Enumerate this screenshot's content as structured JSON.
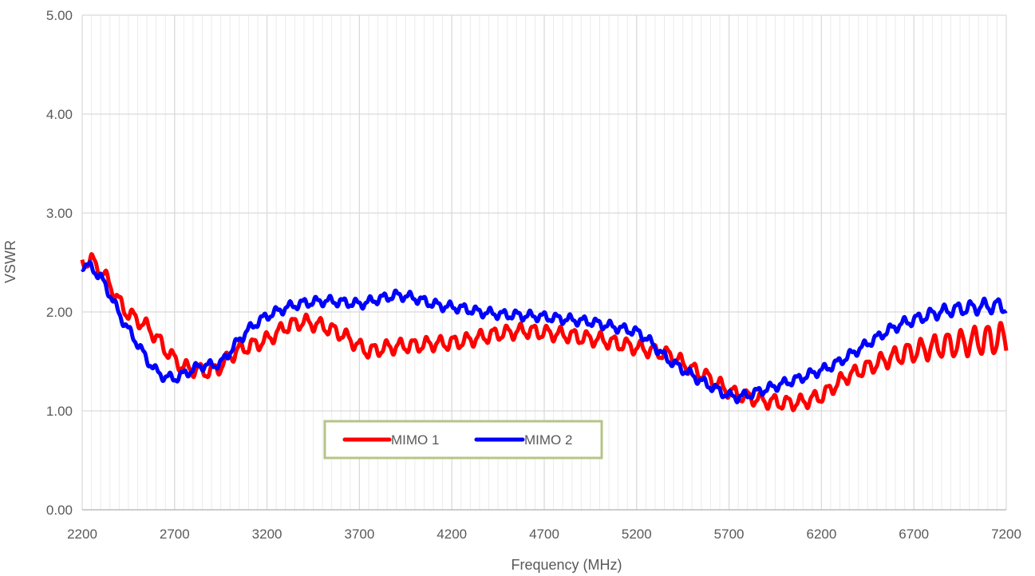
{
  "chart_data": {
    "type": "line",
    "title": "",
    "xlabel": "Frequency (MHz)",
    "ylabel": "VSWR",
    "xlim": [
      2200,
      7200
    ],
    "ylim": [
      0,
      5
    ],
    "x_ticks": [
      2200,
      2700,
      3200,
      3700,
      4200,
      4700,
      5200,
      5700,
      6200,
      6700,
      7200
    ],
    "x_tick_labels": [
      "2200",
      "2700",
      "3200",
      "3700",
      "4200",
      "4700",
      "5200",
      "5700",
      "6200",
      "6700",
      "7200"
    ],
    "y_ticks": [
      0,
      1,
      2,
      3,
      4,
      5
    ],
    "y_tick_labels": [
      "0.00",
      "1.00",
      "2.00",
      "3.00",
      "4.00",
      "5.00"
    ],
    "grid": true,
    "legend_position": "bottom-center",
    "series": [
      {
        "name": "MIMO 1",
        "color": "#ff0000",
        "x": [
          2200,
          2250,
          2300,
          2350,
          2400,
          2450,
          2500,
          2550,
          2600,
          2650,
          2700,
          2750,
          2800,
          2850,
          2900,
          2950,
          3000,
          3050,
          3100,
          3150,
          3200,
          3250,
          3300,
          3350,
          3400,
          3450,
          3500,
          3550,
          3600,
          3650,
          3700,
          3750,
          3800,
          3850,
          3900,
          3950,
          4000,
          4050,
          4100,
          4150,
          4200,
          4250,
          4300,
          4350,
          4400,
          4450,
          4500,
          4550,
          4600,
          4650,
          4700,
          4750,
          4800,
          4850,
          4900,
          4950,
          5000,
          5050,
          5100,
          5150,
          5200,
          5250,
          5300,
          5350,
          5400,
          5450,
          5500,
          5550,
          5600,
          5650,
          5700,
          5750,
          5800,
          5850,
          5900,
          5950,
          6000,
          6050,
          6100,
          6150,
          6200,
          6250,
          6300,
          6350,
          6400,
          6450,
          6500,
          6550,
          6600,
          6650,
          6700,
          6750,
          6800,
          6850,
          6900,
          6950,
          7000,
          7050,
          7100,
          7150,
          7200
        ],
        "values": [
          2.5,
          2.52,
          2.42,
          2.28,
          2.1,
          1.98,
          1.92,
          1.85,
          1.75,
          1.62,
          1.52,
          1.44,
          1.42,
          1.4,
          1.4,
          1.45,
          1.55,
          1.62,
          1.65,
          1.68,
          1.72,
          1.78,
          1.85,
          1.88,
          1.9,
          1.88,
          1.86,
          1.82,
          1.78,
          1.72,
          1.65,
          1.6,
          1.62,
          1.64,
          1.65,
          1.66,
          1.66,
          1.67,
          1.68,
          1.68,
          1.69,
          1.7,
          1.72,
          1.74,
          1.76,
          1.78,
          1.79,
          1.8,
          1.81,
          1.8,
          1.79,
          1.78,
          1.77,
          1.76,
          1.74,
          1.73,
          1.72,
          1.7,
          1.68,
          1.66,
          1.64,
          1.62,
          1.6,
          1.58,
          1.55,
          1.48,
          1.42,
          1.38,
          1.32,
          1.26,
          1.2,
          1.16,
          1.14,
          1.12,
          1.1,
          1.09,
          1.08,
          1.08,
          1.09,
          1.12,
          1.15,
          1.22,
          1.3,
          1.36,
          1.4,
          1.44,
          1.48,
          1.52,
          1.55,
          1.58,
          1.6,
          1.62,
          1.64,
          1.66,
          1.67,
          1.68,
          1.7,
          1.71,
          1.72,
          1.73,
          1.73
        ]
      },
      {
        "name": "MIMO 2",
        "color": "#0000ff",
        "x": [
          2200,
          2250,
          2300,
          2350,
          2400,
          2450,
          2500,
          2550,
          2600,
          2650,
          2700,
          2750,
          2800,
          2850,
          2900,
          2950,
          3000,
          3050,
          3100,
          3150,
          3200,
          3250,
          3300,
          3350,
          3400,
          3450,
          3500,
          3550,
          3600,
          3650,
          3700,
          3750,
          3800,
          3850,
          3900,
          3950,
          4000,
          4050,
          4100,
          4150,
          4200,
          4250,
          4300,
          4350,
          4400,
          4450,
          4500,
          4550,
          4600,
          4650,
          4700,
          4750,
          4800,
          4850,
          4900,
          4950,
          5000,
          5050,
          5100,
          5150,
          5200,
          5250,
          5300,
          5350,
          5400,
          5450,
          5500,
          5550,
          5600,
          5650,
          5700,
          5750,
          5800,
          5850,
          5900,
          5950,
          6000,
          6050,
          6100,
          6150,
          6200,
          6250,
          6300,
          6350,
          6400,
          6450,
          6500,
          6550,
          6600,
          6650,
          6700,
          6750,
          6800,
          6850,
          6900,
          6950,
          7000,
          7050,
          7100,
          7150,
          7200
        ],
        "values": [
          2.48,
          2.45,
          2.35,
          2.18,
          1.98,
          1.82,
          1.68,
          1.52,
          1.4,
          1.34,
          1.33,
          1.37,
          1.42,
          1.46,
          1.46,
          1.48,
          1.6,
          1.72,
          1.82,
          1.9,
          1.96,
          2.0,
          2.04,
          2.07,
          2.09,
          2.1,
          2.11,
          2.11,
          2.1,
          2.09,
          2.08,
          2.1,
          2.13,
          2.15,
          2.17,
          2.16,
          2.14,
          2.11,
          2.08,
          2.06,
          2.05,
          2.04,
          2.02,
          2.0,
          1.99,
          1.98,
          1.97,
          1.97,
          1.96,
          1.96,
          1.95,
          1.94,
          1.93,
          1.92,
          1.91,
          1.9,
          1.88,
          1.86,
          1.84,
          1.82,
          1.8,
          1.74,
          1.65,
          1.55,
          1.48,
          1.42,
          1.36,
          1.3,
          1.25,
          1.2,
          1.15,
          1.14,
          1.16,
          1.19,
          1.22,
          1.25,
          1.28,
          1.31,
          1.34,
          1.38,
          1.41,
          1.45,
          1.5,
          1.56,
          1.62,
          1.68,
          1.74,
          1.8,
          1.85,
          1.89,
          1.92,
          1.95,
          1.98,
          2.0,
          2.02,
          2.03,
          2.04,
          2.05,
          2.06,
          2.06,
          2.06
        ]
      }
    ]
  }
}
